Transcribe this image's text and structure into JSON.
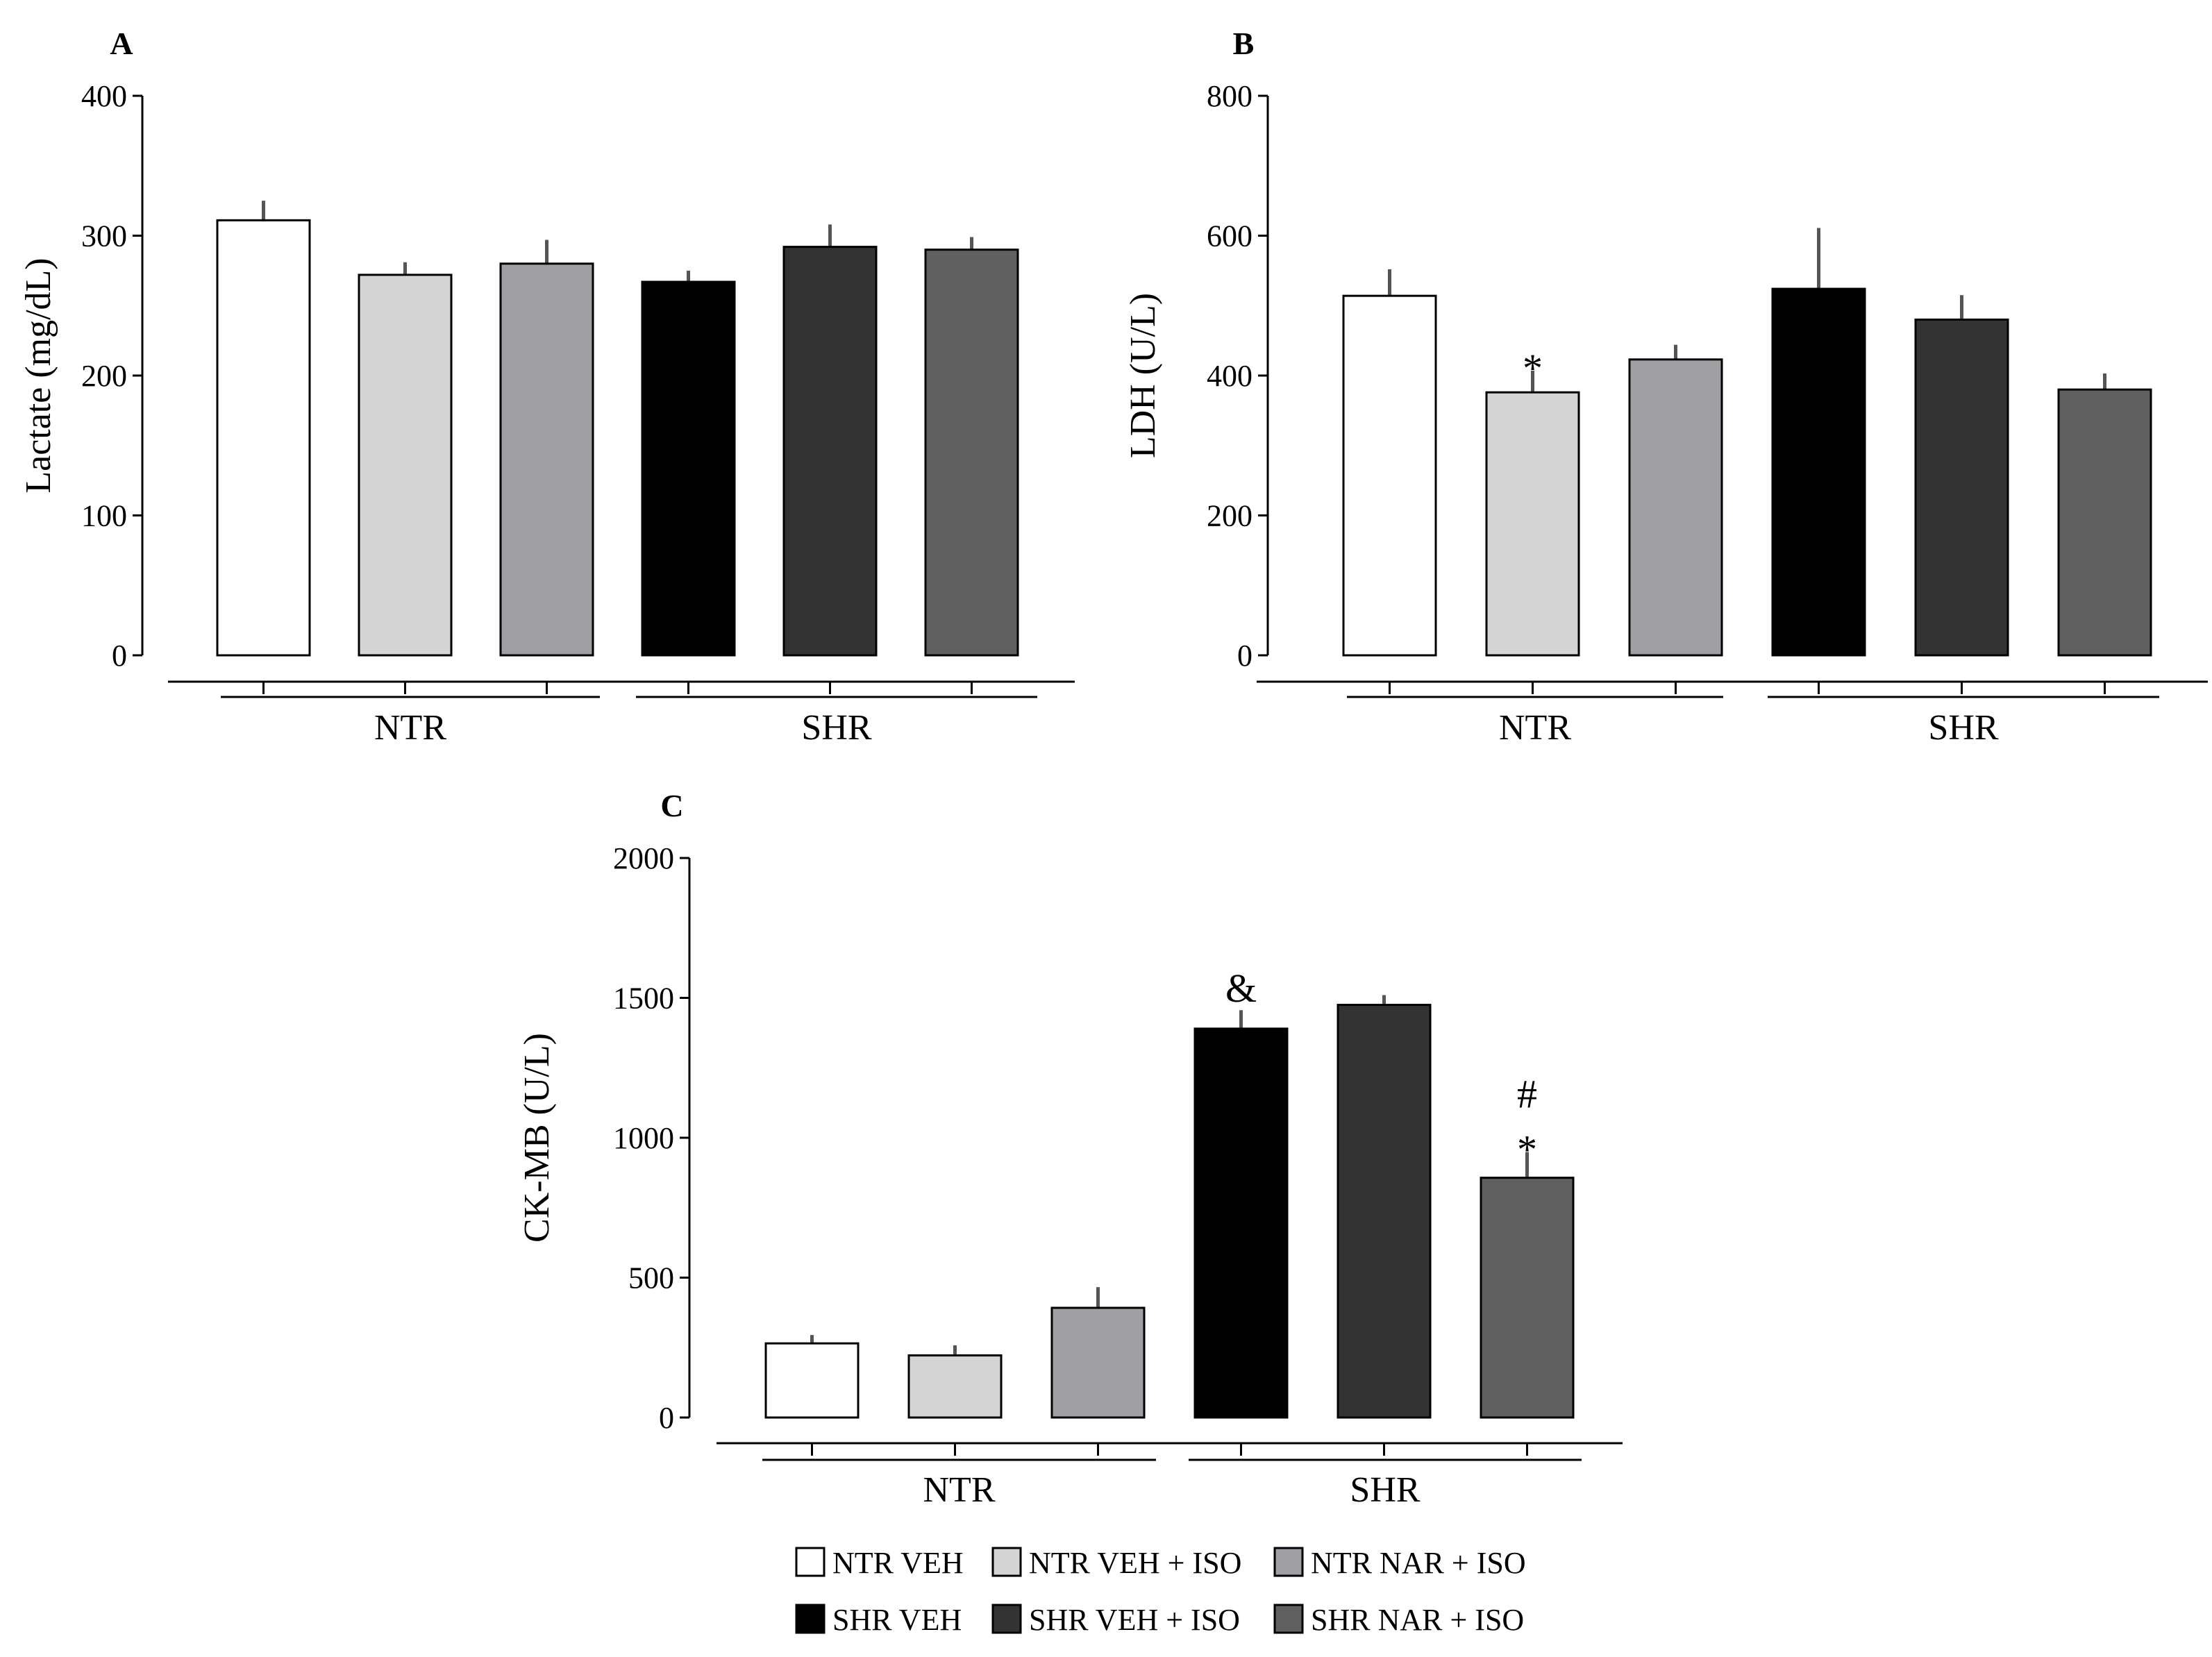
{
  "chart_data": [
    {
      "type": "bar",
      "panel": "A",
      "title": "",
      "xlabel": "",
      "ylabel": "Lactate (mg/dL)",
      "ylim": [
        0,
        400
      ],
      "yticks": [
        0,
        100,
        200,
        300,
        400
      ],
      "groups": [
        "NTR",
        "SHR"
      ],
      "categories": [
        "NTR VEH",
        "NTR VEH + ISO",
        "NTR NAR + ISO",
        "SHR VEH",
        "SHR VEH + ISO",
        "SHR NAR + ISO"
      ],
      "values": [
        311,
        272,
        280,
        267,
        292,
        290
      ],
      "errors": [
        14,
        9,
        17,
        8,
        16,
        9
      ],
      "annotations": []
    },
    {
      "type": "bar",
      "panel": "B",
      "title": "",
      "xlabel": "",
      "ylabel": "LDH (U/L)",
      "ylim": [
        0,
        800
      ],
      "yticks": [
        0,
        200,
        400,
        600,
        800
      ],
      "groups": [
        "NTR",
        "SHR"
      ],
      "categories": [
        "NTR VEH",
        "NTR VEH + ISO",
        "NTR NAR + ISO",
        "SHR VEH",
        "SHR VEH + ISO",
        "SHR NAR + ISO"
      ],
      "values": [
        514,
        376,
        423,
        524,
        480,
        380
      ],
      "errors": [
        38,
        31,
        21,
        87,
        35,
        23
      ],
      "annotations": [
        {
          "bar": 1,
          "lines": [
            "*"
          ]
        }
      ]
    },
    {
      "type": "bar",
      "panel": "C",
      "title": "",
      "xlabel": "",
      "ylabel": "CK-MB (U/L)",
      "ylim": [
        0,
        2000
      ],
      "yticks": [
        0,
        500,
        1000,
        1500,
        2000
      ],
      "groups": [
        "NTR",
        "SHR"
      ],
      "categories": [
        "NTR VEH",
        "NTR VEH + ISO",
        "NTR NAR + ISO",
        "SHR VEH",
        "SHR VEH + ISO",
        "SHR NAR + ISO"
      ],
      "values": [
        265,
        222,
        392,
        1390,
        1475,
        857
      ],
      "errors": [
        30,
        36,
        74,
        66,
        35,
        92
      ],
      "annotations": [
        {
          "bar": 3,
          "lines": [
            "&"
          ]
        },
        {
          "bar": 5,
          "lines": [
            "#",
            "*"
          ]
        }
      ]
    }
  ],
  "colors": [
    "#ffffff",
    "#d5d5d5",
    "#a0a0a4",
    "#000000",
    "#333333",
    "#606060"
  ],
  "legend": {
    "items": [
      "NTR VEH",
      "NTR VEH + ISO",
      "NTR NAR + ISO",
      "SHR VEH",
      "SHR VEH + ISO",
      "SHR NAR + ISO"
    ]
  }
}
